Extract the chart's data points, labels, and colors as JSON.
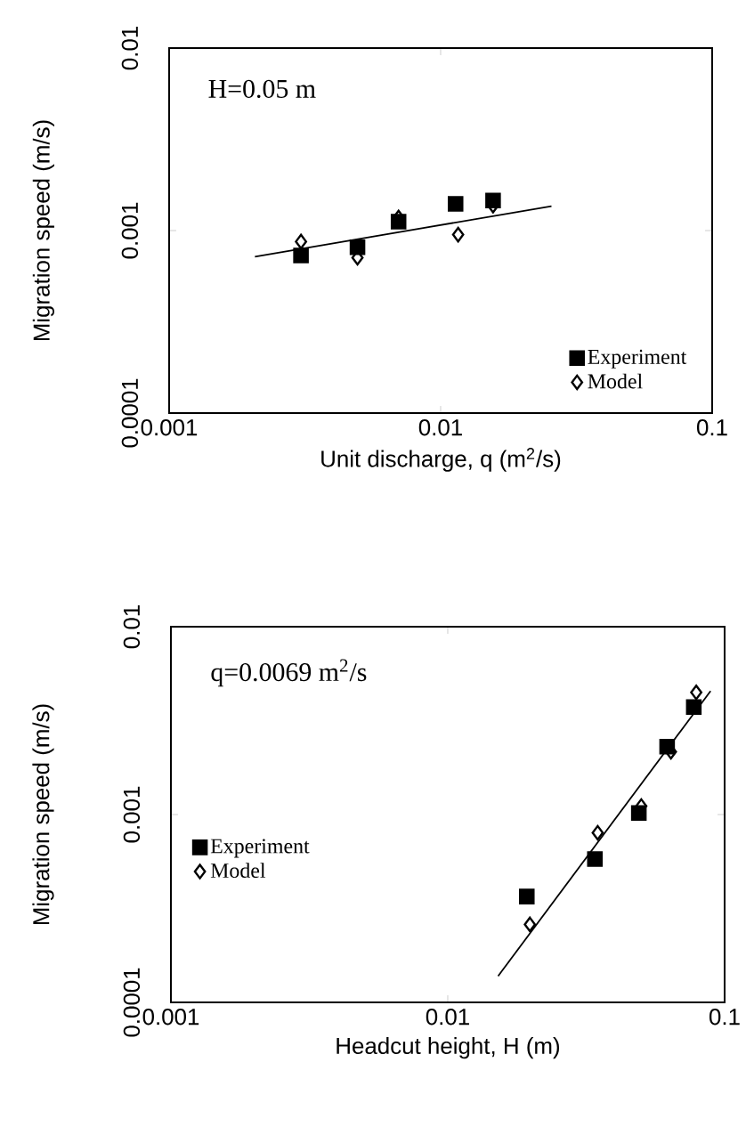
{
  "chart_data": [
    {
      "type": "scatter",
      "xlabel": "Unit discharge, q (m$^{2}$/s)",
      "ylabel": "Migration speed (m/s)",
      "log": "xy",
      "xlim": [
        0.001,
        0.1
      ],
      "ylim": [
        0.0001,
        0.01
      ],
      "xticks": [
        0.001,
        0.01,
        0.1
      ],
      "yticks": [
        0.0001,
        0.001,
        0.01
      ],
      "legend": "bottom right",
      "annotations": [
        "H=0.05 m"
      ],
      "series": [
        {
          "name": "Experiment",
          "color": "#000000",
          "marker": "square",
          "x": [
            0.00306,
            0.00494,
            0.007,
            0.01135,
            0.0156
          ],
          "values": [
            0.00073,
            0.00081,
            0.00112,
            0.0014,
            0.00146
          ]
        },
        {
          "name": "Model",
          "color": "#000000",
          "marker": "diamond",
          "x": [
            0.00306,
            0.00494,
            0.007,
            0.0116,
            0.0156
          ],
          "values": [
            0.00087,
            0.00071,
            0.00118,
            0.00095,
            0.00137
          ]
        },
        {
          "type": "line",
          "color": "#000000",
          "x": [
            0.00207,
            0.0256
          ],
          "values": [
            0.00072,
            0.00136
          ]
        }
      ]
    },
    {
      "type": "scatter",
      "xlabel": "Headcut height, H (m)",
      "ylabel": "Migration speed (m/s)",
      "log": "xy",
      "xlim": [
        0.001,
        0.1
      ],
      "ylim": [
        0.0001,
        0.01
      ],
      "xticks": [
        0.001,
        0.01,
        0.1
      ],
      "yticks": [
        0.0001,
        0.001,
        0.01
      ],
      "legend": "left",
      "annotations": [
        "q=0.0069 m$^{2}$/s"
      ],
      "series": [
        {
          "name": "Experiment",
          "color": "#000000",
          "marker": "square",
          "x": [
            0.0193,
            0.034,
            0.049,
            0.062,
            0.0774
          ],
          "values": [
            0.000366,
            0.00058,
            0.00102,
            0.0023,
            0.00374
          ]
        },
        {
          "name": "Model",
          "color": "#000000",
          "marker": "diamond",
          "x": [
            0.0198,
            0.0348,
            0.05,
            0.064,
            0.079
          ],
          "values": [
            0.00026,
            0.0008,
            0.00111,
            0.00216,
            0.00447
          ]
        },
        {
          "type": "line",
          "color": "#000000",
          "x": [
            0.0152,
            0.089
          ],
          "values": [
            0.000138,
            0.00455
          ]
        }
      ]
    }
  ]
}
